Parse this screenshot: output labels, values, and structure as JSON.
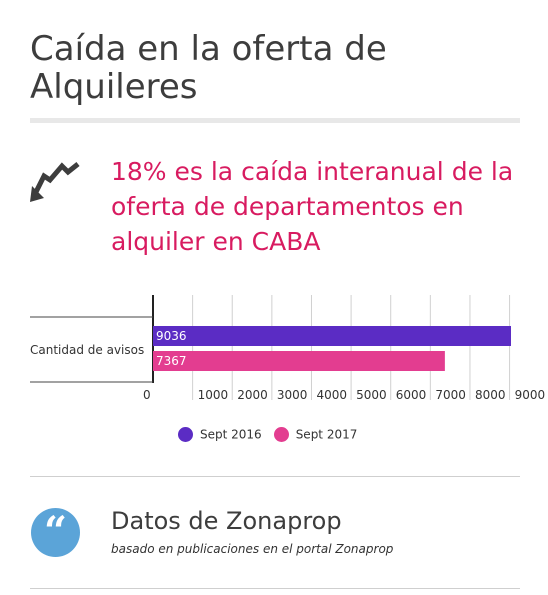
{
  "header": {
    "title": "Caída en la oferta de Alquileres"
  },
  "headline": {
    "text": "18% es la caída interanual de la oferta de departamentos en alquiler en CABA",
    "color": "#d81b60",
    "icon": "trend-down-arrow-icon"
  },
  "chart_data": {
    "type": "bar",
    "orientation": "horizontal",
    "categories": [
      "Cantidad de avisos"
    ],
    "series": [
      {
        "name": "Sept 2016",
        "values": [
          9036
        ],
        "color": "#5b2cc4"
      },
      {
        "name": "Sept 2017",
        "values": [
          7367
        ],
        "color": "#e33d90"
      }
    ],
    "xlim": [
      0,
      9000
    ],
    "xticks": [
      0,
      1000,
      2000,
      3000,
      4000,
      5000,
      6000,
      7000,
      8000,
      9000
    ],
    "grid": true,
    "legend_position": "bottom"
  },
  "source": {
    "title": "Datos de Zonaprop",
    "subtitle": "basado en publicaciones en el portal Zonaprop",
    "icon": "quote-icon",
    "icon_glyph": "“",
    "icon_color": "#5ba4d8"
  }
}
